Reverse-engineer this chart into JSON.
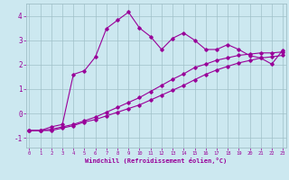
{
  "xlabel": "Windchill (Refroidissement éolien,°C)",
  "background_color": "#cce8f0",
  "line_color": "#990099",
  "grid_color": "#a0c0c8",
  "x_ticks": [
    0,
    1,
    2,
    3,
    4,
    5,
    6,
    7,
    8,
    9,
    10,
    11,
    12,
    13,
    14,
    15,
    16,
    17,
    18,
    19,
    20,
    21,
    22,
    23
  ],
  "y_ticks": [
    -1,
    0,
    1,
    2,
    3,
    4
  ],
  "ylim": [
    -1.4,
    4.5
  ],
  "xlim": [
    -0.3,
    23.3
  ],
  "series1_y": [
    -0.7,
    -0.7,
    -0.7,
    -0.6,
    -0.5,
    -0.35,
    -0.25,
    -0.1,
    0.05,
    0.2,
    0.35,
    0.55,
    0.75,
    0.95,
    1.15,
    1.38,
    1.6,
    1.78,
    1.93,
    2.07,
    2.17,
    2.27,
    2.32,
    2.38
  ],
  "series2_y": [
    -0.7,
    -0.7,
    -0.65,
    -0.55,
    -0.45,
    -0.3,
    -0.15,
    0.05,
    0.25,
    0.45,
    0.65,
    0.9,
    1.15,
    1.4,
    1.62,
    1.88,
    2.02,
    2.18,
    2.28,
    2.38,
    2.43,
    2.48,
    2.48,
    2.52
  ],
  "series3_y": [
    -0.7,
    -0.7,
    -0.55,
    -0.45,
    1.6,
    1.75,
    2.32,
    3.48,
    3.82,
    4.15,
    3.5,
    3.15,
    2.62,
    3.08,
    3.3,
    3.0,
    2.62,
    2.62,
    2.82,
    2.62,
    2.37,
    2.27,
    2.02,
    2.6
  ]
}
